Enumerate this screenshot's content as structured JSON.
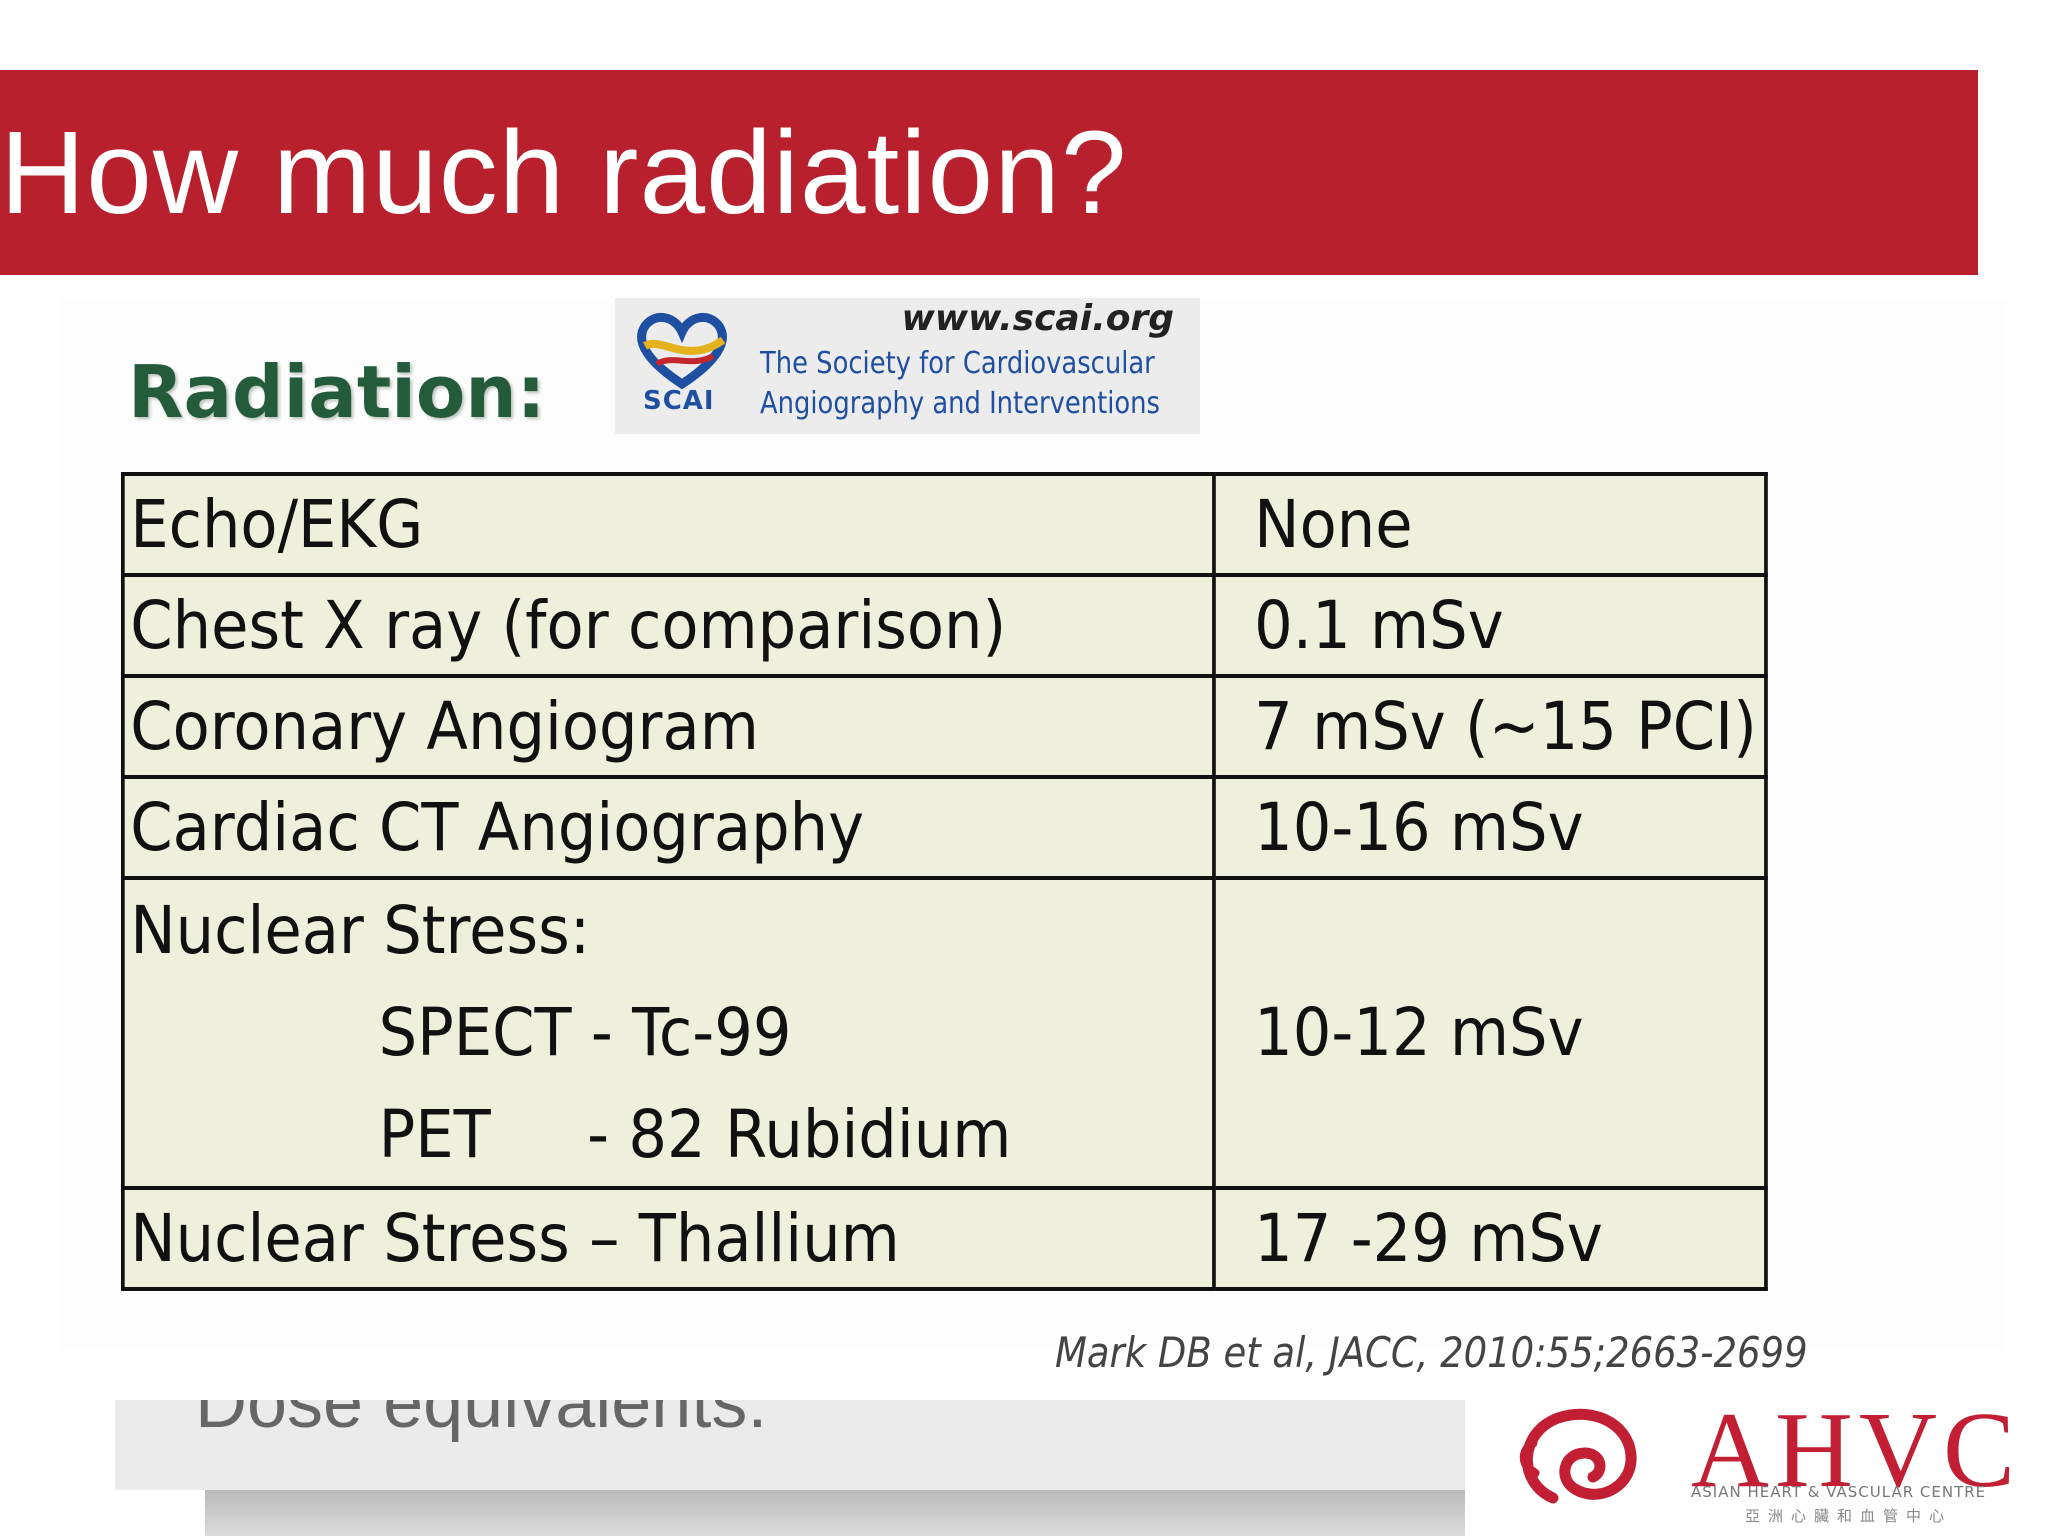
{
  "slide": {
    "title": "How much radiation?",
    "heading": "Radiation:"
  },
  "scai": {
    "url": "www.scai.org",
    "name_line1": "The Society for Cardiovascular",
    "name_line2": "Angiography and Interventions",
    "logo_text": "SCAI"
  },
  "table": {
    "rows": [
      {
        "procedure": "Echo/EKG",
        "dose": "None"
      },
      {
        "procedure": "Chest X ray (for comparison)",
        "dose": "0.1 mSv"
      },
      {
        "procedure": "Coronary Angiogram",
        "dose": "7 mSv  (~15 PCI)"
      },
      {
        "procedure": "Cardiac CT Angiography",
        "dose": "10-16 mSv"
      },
      {
        "procedure": "Nuclear Stress:",
        "sub_1": "SPECT - Tc-99",
        "sub_2": "PET     - 82 Rubidium",
        "dose": "10-12 mSv"
      },
      {
        "procedure": "Nuclear Stress – Thallium",
        "dose": "17 -29 mSv"
      }
    ]
  },
  "citation": "Mark DB et al, JACC, 2010:55;2663-2699",
  "background_caption": "Dose equivalents:",
  "ahvc": {
    "letters": "AHVC",
    "subtitle": "ASIAN HEART & VASCULAR CENTRE",
    "subtitle_cn": "亞洲心臟和血管中心"
  },
  "colors": {
    "title_bar": "#b8202e",
    "heading": "#245b3a",
    "table_bg": "#eef0dc",
    "scai_blue": "#1f4fa0",
    "ahvc_red": "#c21f34"
  }
}
